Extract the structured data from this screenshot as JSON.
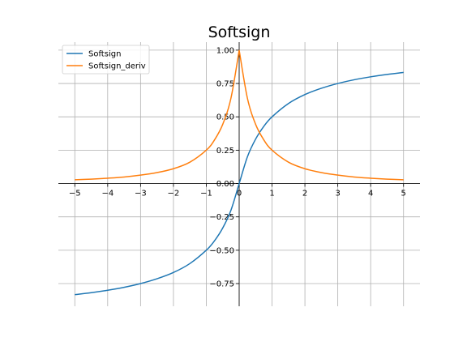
{
  "chart_data": {
    "type": "line",
    "title": "Softsign",
    "xlabel": "",
    "ylabel": "",
    "xlim": [
      -5.5,
      5.5
    ],
    "ylim": [
      -0.92,
      1.06
    ],
    "x_ticks": [
      -5,
      -4,
      -3,
      -2,
      -1,
      0,
      1,
      2,
      3,
      4,
      5
    ],
    "x_tick_labels": [
      "−5",
      "−4",
      "−3",
      "−2",
      "−1",
      "0",
      "1",
      "2",
      "3",
      "4",
      "5"
    ],
    "y_ticks": [
      -0.75,
      -0.5,
      -0.25,
      0,
      0.25,
      0.5,
      0.75,
      1.0
    ],
    "y_tick_labels": [
      "−0.75",
      "−0.50",
      "−0.25",
      "0.00",
      "0.25",
      "0.50",
      "0.75",
      "1.00"
    ],
    "grid": true,
    "legend_position": "top-left",
    "series": [
      {
        "name": "Softsign",
        "color": "#1f77b4",
        "x": [
          -5,
          -4.5,
          -4,
          -3.5,
          -3,
          -2.5,
          -2,
          -1.5,
          -1,
          -0.75,
          -0.5,
          -0.25,
          0,
          0.25,
          0.5,
          0.75,
          1,
          1.5,
          2,
          2.5,
          3,
          3.5,
          4,
          4.5,
          5
        ],
        "y": [
          -0.833,
          -0.818,
          -0.8,
          -0.778,
          -0.75,
          -0.714,
          -0.667,
          -0.6,
          -0.5,
          -0.429,
          -0.333,
          -0.2,
          0,
          0.2,
          0.333,
          0.429,
          0.5,
          0.6,
          0.667,
          0.714,
          0.75,
          0.778,
          0.8,
          0.818,
          0.833
        ]
      },
      {
        "name": "Softsign_deriv",
        "color": "#ff7f0e",
        "x": [
          -5,
          -4.5,
          -4,
          -3.5,
          -3,
          -2.5,
          -2,
          -1.5,
          -1,
          -0.75,
          -0.5,
          -0.25,
          0,
          0.25,
          0.5,
          0.75,
          1,
          1.5,
          2,
          2.5,
          3,
          3.5,
          4,
          4.5,
          5
        ],
        "y": [
          0.028,
          0.033,
          0.04,
          0.049,
          0.063,
          0.082,
          0.111,
          0.16,
          0.25,
          0.327,
          0.444,
          0.64,
          1.0,
          0.64,
          0.444,
          0.327,
          0.25,
          0.16,
          0.111,
          0.082,
          0.063,
          0.049,
          0.04,
          0.033,
          0.028
        ]
      }
    ]
  }
}
